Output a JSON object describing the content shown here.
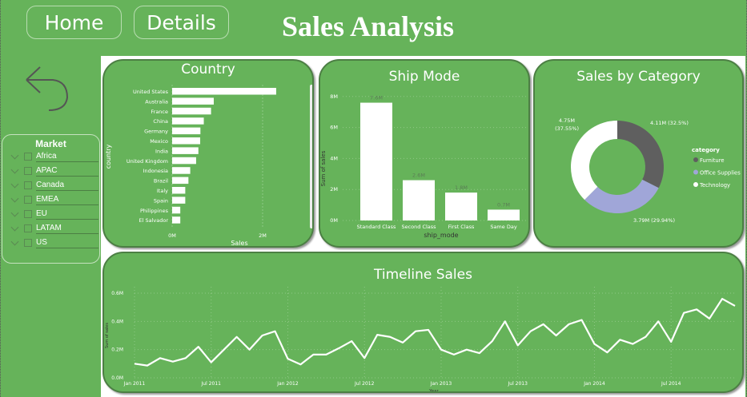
{
  "header": {
    "home_label": "Home",
    "details_label": "Details",
    "title": "Sales Analysis"
  },
  "colors": {
    "background": "#66b35a",
    "furniture": "#5f5f5f",
    "office_supplies": "#a0a6d8",
    "technology": "#ffffff"
  },
  "back_icon": "undo-arrow-icon",
  "slicer": {
    "title": "Market",
    "items": [
      "Africa",
      "APAC",
      "Canada",
      "EMEA",
      "EU",
      "LATAM",
      "US"
    ]
  },
  "chart_data": [
    {
      "type": "bar",
      "orientation": "horizontal",
      "title": "Country",
      "xlabel": "Sales",
      "ylabel": "country",
      "xticks": [
        "0M",
        "2M"
      ],
      "xlim": [
        0,
        2.3
      ],
      "categories": [
        "United States",
        "Australia",
        "France",
        "China",
        "Germany",
        "Mexico",
        "India",
        "United Kingdom",
        "Indonesia",
        "Brazil",
        "Italy",
        "Spain",
        "Philippines",
        "El Salvador"
      ],
      "values": [
        2.3,
        0.92,
        0.86,
        0.7,
        0.625,
        0.62,
        0.58,
        0.53,
        0.4,
        0.36,
        0.29,
        0.29,
        0.18,
        0.18
      ]
    },
    {
      "type": "bar",
      "title": "Ship Mode",
      "xlabel": "ship_mode",
      "ylabel": "Sum of sales",
      "yticks": [
        "0M",
        "2M",
        "4M",
        "6M",
        "8M"
      ],
      "ylim": [
        0,
        8
      ],
      "categories": [
        "Standard Class",
        "Second Class",
        "First Class",
        "Same Day"
      ],
      "values": [
        7.6,
        2.6,
        1.8,
        0.7
      ],
      "data_labels": [
        "7.6M",
        "2.6M",
        "1.8M",
        "0.7M"
      ]
    },
    {
      "type": "pie",
      "donut": true,
      "title": "Sales by Category",
      "legend_title": "category",
      "legend_position": "right",
      "categories": [
        "Furniture",
        "Office Supplies",
        "Technology"
      ],
      "values": [
        4.11,
        3.79,
        4.75
      ],
      "data_labels": [
        "4.11M (32.5%)",
        "3.79M (29.94%)",
        "4.75M (37.55%)"
      ]
    },
    {
      "type": "line",
      "title": "Timeline Sales",
      "xlabel": "Year",
      "ylabel": "Sum of sales",
      "yticks": [
        "0.0M",
        "0.2M",
        "0.4M",
        "0.6M"
      ],
      "ylim": [
        0,
        0.6
      ],
      "xticks": [
        "Jan 2011",
        "Jul 2011",
        "Jan 2012",
        "Jul 2012",
        "Jan 2013",
        "Jul 2013",
        "Jan 2014",
        "Jul 2014"
      ],
      "x_start": "Jan 2011",
      "x_end": "Dec 2014",
      "values": [
        0.1,
        0.087,
        0.14,
        0.115,
        0.14,
        0.22,
        0.11,
        0.2,
        0.29,
        0.2,
        0.3,
        0.33,
        0.135,
        0.095,
        0.165,
        0.165,
        0.21,
        0.26,
        0.14,
        0.305,
        0.29,
        0.25,
        0.33,
        0.34,
        0.2,
        0.165,
        0.2,
        0.175,
        0.26,
        0.4,
        0.23,
        0.33,
        0.38,
        0.3,
        0.38,
        0.41,
        0.24,
        0.18,
        0.27,
        0.24,
        0.29,
        0.4,
        0.255,
        0.46,
        0.485,
        0.42,
        0.56,
        0.51
      ]
    }
  ]
}
